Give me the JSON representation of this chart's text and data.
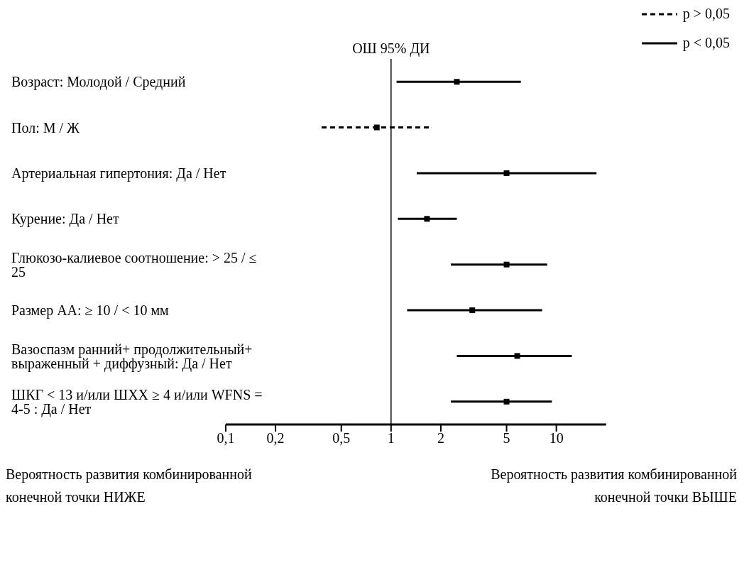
{
  "chart_data": {
    "type": "scatter",
    "categories": [
      "Возраст: Молодой / Средний",
      "Пол: М / Ж",
      "Артериальная гипертония: Да / Нет",
      "Курение: Да / Нет",
      "Глюкозо-калиевое соотношение: > 25 / ≤ 25",
      "Размер АА: ≥ 10 / < 10 мм",
      "Вазоспазм ранний+ продолжительный+ выраженный + диффузный: Да / Нет",
      "ШКГ < 13 и/или ШХХ ≥ 4 и/или WFNS = 4-5 : Да / Нет"
    ],
    "series": [
      {
        "name": "p > 0,05",
        "color": "#000000",
        "line_style": "dashed",
        "values": [
          null,
          0.82,
          null,
          null,
          null,
          null,
          null,
          null
        ],
        "errors": [
          null,
          [
            0.38,
            1.75
          ],
          null,
          null,
          null,
          null,
          null,
          null
        ]
      },
      {
        "name": "p < 0,05",
        "color": "#000000",
        "line_style": "solid",
        "values": [
          2.5,
          null,
          5.0,
          1.65,
          5.0,
          3.1,
          5.8,
          5.0
        ],
        "errors": [
          [
            1.08,
            6.1
          ],
          null,
          [
            1.43,
            17.5
          ],
          [
            1.1,
            2.5
          ],
          [
            2.3,
            8.8
          ],
          [
            1.25,
            8.2
          ],
          [
            2.5,
            12.4
          ],
          [
            2.3,
            9.4
          ]
        ]
      }
    ],
    "orientation": "horizontal",
    "log": "x",
    "xlim": [
      0.1,
      20
    ],
    "xticks": [
      {
        "value": 0.1,
        "label": "0,1"
      },
      {
        "value": 0.2,
        "label": "0,2"
      },
      {
        "value": 0.5,
        "label": "0,5"
      },
      {
        "value": 1,
        "label": "1"
      },
      {
        "value": 2,
        "label": "2"
      },
      {
        "value": 5,
        "label": "5"
      },
      {
        "value": 10,
        "label": "10"
      }
    ],
    "marker": "square",
    "legend": "top right",
    "ref_lines": [
      {
        "axis": "x",
        "value": 1,
        "label": "ОШ 95% ДИ",
        "color": "#000000"
      }
    ],
    "annotations": [
      "Вероятность развития комбинированной конечной точки НИЖЕ",
      "Вероятность развития комбинированной конечной точки ВЫШЕ"
    ]
  }
}
